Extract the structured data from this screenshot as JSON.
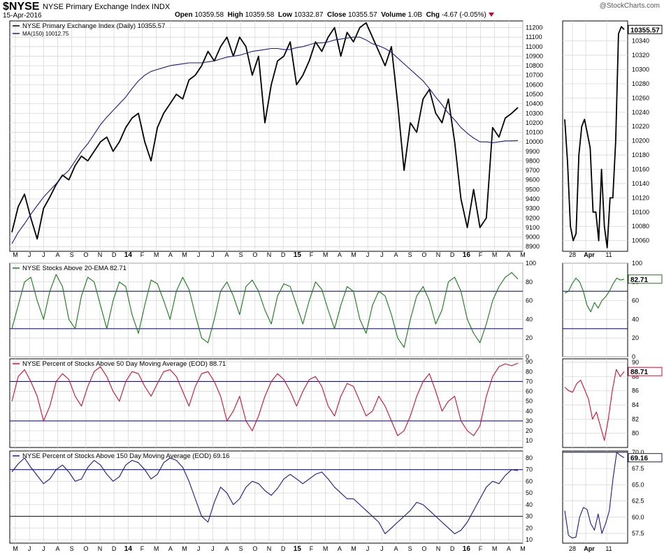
{
  "header": {
    "symbol": "$NYSE",
    "name": "NYSE Primary Exchange Index",
    "exchange": "INDX",
    "date": "15-Apr-2016",
    "open_label": "Open",
    "open": "10359.58",
    "high_label": "High",
    "high": "10359.58",
    "low_label": "Low",
    "low": "10332.87",
    "close_label": "Close",
    "close": "10355.57",
    "volume_label": "Volume",
    "volume": "1.0B",
    "chg_label": "Chg",
    "chg": "-4.67 (-0.05%)",
    "logo": "@StockCharts.com"
  },
  "colors": {
    "price": "#000000",
    "ma": "#1a1a8c",
    "ema20": "#1a7a1a",
    "pct50": "#cc1133",
    "pct150": "#1a1a8c",
    "grid": "#d8d8d8",
    "hline": "#1a1a6e"
  },
  "x_month_labels": [
    "M",
    "J",
    "J",
    "A",
    "S",
    "O",
    "N",
    "D",
    "14",
    "F",
    "M",
    "A",
    "M",
    "J",
    "J",
    "A",
    "S",
    "O",
    "N",
    "D",
    "15",
    "F",
    "M",
    "A",
    "M",
    "J",
    "J",
    "A",
    "S",
    "O",
    "N",
    "D",
    "16",
    "F",
    "M",
    "A",
    "M"
  ],
  "x_zoom_labels": [
    "28",
    "Apr",
    "11"
  ],
  "chart_data": [
    {
      "type": "line",
      "name": "price-panel",
      "title": "NYSE Primary Exchange Index (Daily) 10355.57",
      "series": [
        {
          "name": "NYSE Primary Exchange Index (Daily) 10355.57",
          "color": "#000000",
          "values": [
            9050,
            9320,
            9450,
            9200,
            8980,
            9300,
            9420,
            9550,
            9650,
            9600,
            9750,
            9850,
            9800,
            9900,
            10000,
            10050,
            9900,
            10000,
            10150,
            10250,
            10300,
            10000,
            9800,
            10150,
            10300,
            10400,
            10500,
            10450,
            10650,
            10700,
            10800,
            10950,
            10850,
            11000,
            11100,
            10900,
            11100,
            11000,
            10700,
            10900,
            10200,
            10600,
            10850,
            10900,
            11050,
            10600,
            10700,
            10850,
            11050,
            10950,
            11100,
            11200,
            10900,
            11150,
            11050,
            11200,
            11250,
            11100,
            10950,
            10800,
            11000,
            10400,
            9700,
            10200,
            10100,
            10450,
            10550,
            10300,
            10200,
            10450,
            10000,
            9400,
            9100,
            9500,
            9100,
            9200,
            10150,
            10050,
            10250,
            10300,
            10360
          ]
        },
        {
          "name": "MA(150) 10012.75",
          "color": "#1a1a8c",
          "values": [
            8930,
            9050,
            9140,
            9240,
            9330,
            9420,
            9490,
            9560,
            9640,
            9700,
            9800,
            9900,
            9980,
            10080,
            10180,
            10260,
            10330,
            10400,
            10470,
            10560,
            10640,
            10700,
            10740,
            10760,
            10780,
            10800,
            10810,
            10820,
            10830,
            10830,
            10830,
            10840,
            10850,
            10870,
            10890,
            10900,
            10910,
            10930,
            10950,
            10960,
            10970,
            10980,
            10980,
            10970,
            10970,
            10990,
            11000,
            11020,
            11040,
            11040,
            11050,
            11070,
            11080,
            11090,
            11100,
            11100,
            11070,
            11030,
            11010,
            10980,
            10940,
            10880,
            10820,
            10760,
            10700,
            10640,
            10560,
            10470,
            10390,
            10300,
            10230,
            10150,
            10090,
            10040,
            10000,
            10000,
            9990,
            10000,
            10010,
            10010,
            10013
          ]
        }
      ],
      "ylim": [
        8850,
        11270
      ],
      "y_ticks": [
        8900,
        9000,
        9100,
        9200,
        9300,
        9400,
        9500,
        9600,
        9700,
        9800,
        9900,
        10000,
        10100,
        10200,
        10300,
        10400,
        10500,
        10600,
        10700,
        10800,
        10900,
        11000,
        11100,
        11200
      ],
      "zoom": {
        "values": [
          10230,
          10170,
          10080,
          10060,
          10070,
          10180,
          10220,
          10230,
          10210,
          10190,
          10100,
          10100,
          10060,
          10160,
          10080,
          10050,
          10120,
          10120,
          10200,
          10350,
          10360,
          10356
        ],
        "ylim": [
          10045,
          10368
        ],
        "y_ticks": [
          10060,
          10080,
          10100,
          10120,
          10140,
          10160,
          10180,
          10200,
          10220,
          10240,
          10260,
          10280,
          10300,
          10320,
          10340
        ],
        "last_label": "10355.57"
      }
    },
    {
      "type": "line",
      "name": "ema20-panel",
      "title": "NYSE Stocks Above 20-EMA 82.71",
      "series": [
        {
          "name": "NYSE Stocks Above 20-EMA 82.71",
          "color": "#1a7a1a",
          "values": [
            30,
            55,
            80,
            85,
            60,
            40,
            70,
            88,
            75,
            40,
            30,
            65,
            85,
            80,
            55,
            30,
            60,
            80,
            75,
            45,
            25,
            55,
            82,
            78,
            60,
            40,
            70,
            85,
            72,
            45,
            20,
            15,
            40,
            70,
            80,
            65,
            45,
            75,
            82,
            70,
            50,
            35,
            65,
            78,
            75,
            55,
            35,
            60,
            80,
            72,
            50,
            30,
            55,
            75,
            70,
            40,
            25,
            55,
            70,
            65,
            45,
            20,
            10,
            40,
            65,
            75,
            60,
            35,
            50,
            80,
            85,
            70,
            40,
            25,
            15,
            35,
            60,
            75,
            85,
            90,
            83
          ]
        }
      ],
      "ylim": [
        0,
        100
      ],
      "y_ticks": [
        0,
        20,
        40,
        60,
        80,
        100
      ],
      "hlines": [
        70,
        30
      ],
      "zoom": {
        "values": [
          68,
          70,
          78,
          84,
          80,
          70,
          55,
          48,
          58,
          52,
          60,
          64,
          70,
          78,
          84,
          82,
          83
        ],
        "ylim": [
          0,
          100
        ],
        "y_ticks": [
          0,
          20,
          40,
          60,
          80,
          100
        ],
        "last_label": "82.71"
      }
    },
    {
      "type": "line",
      "name": "pct50-panel",
      "title": "NYSE Percent of Stocks Above 50 Day Moving Average (EOD) 88.71",
      "series": [
        {
          "name": "NYSE Percent of Stocks Above 50 Day Moving Average (EOD) 88.71",
          "color": "#cc1133",
          "values": [
            50,
            75,
            82,
            70,
            55,
            30,
            45,
            70,
            78,
            72,
            55,
            45,
            65,
            80,
            85,
            75,
            60,
            50,
            70,
            80,
            78,
            65,
            55,
            68,
            80,
            82,
            75,
            60,
            45,
            65,
            78,
            80,
            70,
            55,
            30,
            40,
            55,
            30,
            20,
            35,
            55,
            70,
            78,
            72,
            60,
            45,
            60,
            72,
            75,
            65,
            45,
            35,
            55,
            68,
            65,
            50,
            35,
            40,
            55,
            45,
            30,
            15,
            20,
            35,
            55,
            70,
            78,
            60,
            40,
            50,
            55,
            30,
            20,
            15,
            25,
            55,
            75,
            85,
            88,
            86,
            88.71
          ]
        }
      ],
      "ylim": [
        3,
        93
      ],
      "y_ticks": [
        10,
        20,
        30,
        40,
        50,
        60,
        70,
        80,
        90
      ],
      "hlines": [
        70,
        30
      ],
      "zoom": {
        "values": [
          86.5,
          86,
          85.8,
          87,
          87.5,
          86.2,
          84.8,
          82,
          83,
          81,
          79,
          82,
          86,
          89,
          88,
          88.71
        ],
        "ylim": [
          78,
          90.5
        ],
        "y_ticks": [
          80,
          82,
          84,
          86,
          88,
          90
        ],
        "last_label": "88.71"
      }
    },
    {
      "type": "line",
      "name": "pct150-panel",
      "title": "NYSE Percent of Stocks Above 150 Day Moving Average (EOD) 69.16",
      "series": [
        {
          "name": "NYSE Percent of Stocks Above 150 Day Moving Average (EOD) 69.16",
          "color": "#1a1a8c",
          "values": [
            68,
            75,
            80,
            72,
            65,
            58,
            62,
            70,
            74,
            68,
            60,
            62,
            72,
            78,
            74,
            66,
            60,
            64,
            74,
            78,
            76,
            70,
            62,
            66,
            76,
            80,
            78,
            72,
            60,
            45,
            30,
            25,
            42,
            55,
            50,
            40,
            45,
            55,
            60,
            58,
            52,
            48,
            54,
            62,
            66,
            62,
            58,
            62,
            66,
            68,
            62,
            55,
            50,
            45,
            45,
            40,
            35,
            30,
            25,
            15,
            20,
            25,
            30,
            35,
            42,
            40,
            35,
            30,
            25,
            20,
            15,
            18,
            25,
            35,
            45,
            55,
            60,
            58,
            65,
            70,
            69.16
          ]
        }
      ],
      "ylim": [
        7,
        86
      ],
      "y_ticks": [
        10,
        20,
        30,
        40,
        50,
        60,
        70,
        80
      ],
      "hlines": [
        70,
        30
      ],
      "zoom": {
        "values": [
          61,
          57.2,
          56.8,
          56.9,
          60,
          61.5,
          61.2,
          59,
          58,
          60.5,
          57.5,
          59,
          61,
          66,
          70,
          69.5,
          69.16
        ],
        "ylim": [
          56,
          70.2
        ],
        "y_ticks": [
          57.5,
          60.0,
          62.5,
          65.0,
          67.5,
          70.0
        ],
        "y_tick_labels": [
          "57.5",
          "60.0",
          "62.5",
          "65.0",
          "67.5",
          "70.0"
        ],
        "last_label": "69.16"
      }
    }
  ]
}
